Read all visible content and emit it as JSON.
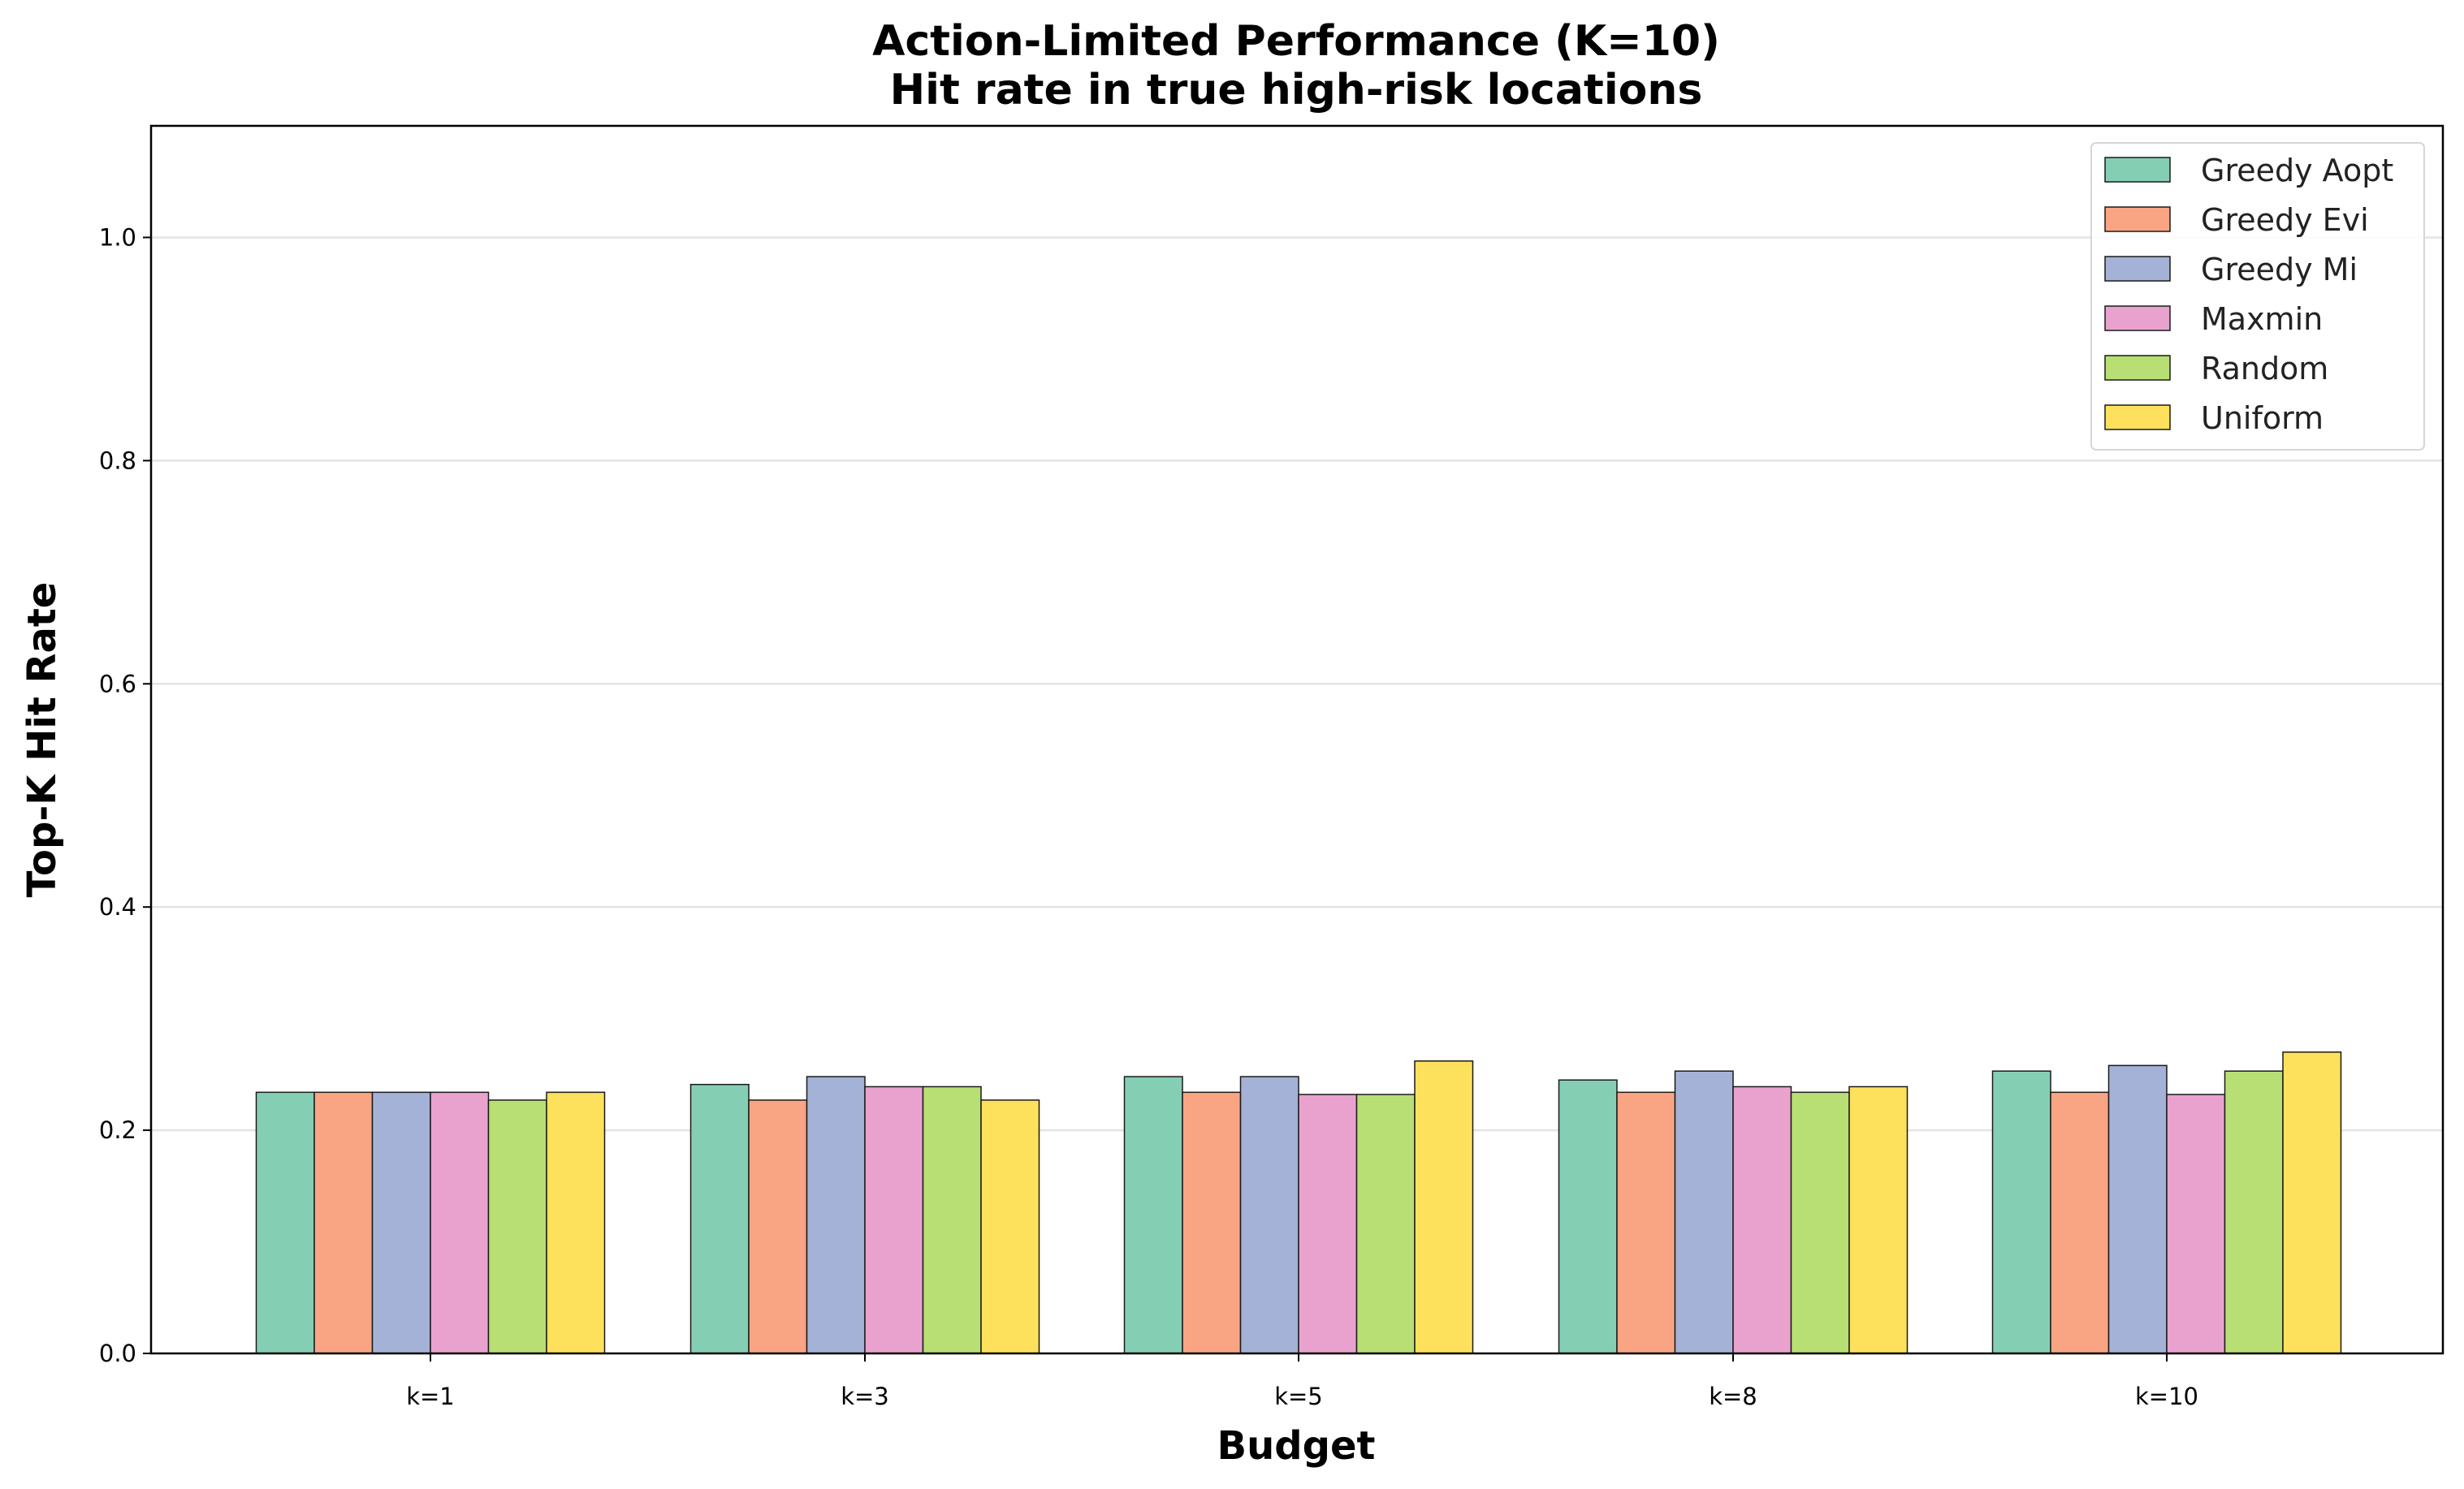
{
  "chart_data": {
    "type": "bar",
    "title": "Action-Limited Performance (K=10)",
    "subtitle": "Hit rate in true high-risk locations",
    "xlabel": "Budget",
    "ylabel": "Top-K Hit Rate",
    "ylim": [
      0,
      1.1
    ],
    "yticks": [
      "0.0",
      "0.2",
      "0.4",
      "0.6",
      "0.8",
      "1.0"
    ],
    "grid": "horizontal",
    "legend_position": "top-right",
    "categories": [
      "k=1",
      "k=3",
      "k=5",
      "k=8",
      "k=10"
    ],
    "series": [
      {
        "name": "Greedy Aopt",
        "color": "#84cfb4",
        "values": [
          0.234,
          0.241,
          0.248,
          0.245,
          0.253
        ]
      },
      {
        "name": "Greedy Evi",
        "color": "#f9a584",
        "values": [
          0.234,
          0.227,
          0.234,
          0.234,
          0.234
        ]
      },
      {
        "name": "Greedy Mi",
        "color": "#a3b2d6",
        "values": [
          0.234,
          0.248,
          0.248,
          0.253,
          0.258
        ]
      },
      {
        "name": "Maxmin",
        "color": "#e9a2ce",
        "values": [
          0.234,
          0.239,
          0.232,
          0.239,
          0.232
        ]
      },
      {
        "name": "Random",
        "color": "#b8df74",
        "values": [
          0.227,
          0.239,
          0.232,
          0.234,
          0.253
        ]
      },
      {
        "name": "Uniform",
        "color": "#fde05b",
        "values": [
          0.234,
          0.227,
          0.262,
          0.239,
          0.27
        ]
      }
    ]
  }
}
